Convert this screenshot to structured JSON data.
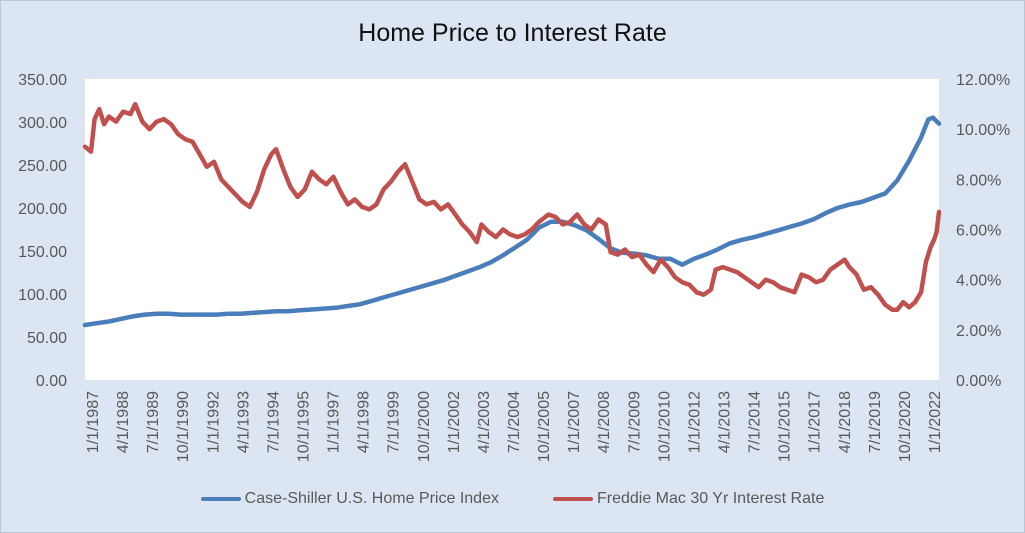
{
  "chart_data": {
    "type": "line",
    "title": "Home Price to Interest Rate",
    "xlabel": "",
    "ylabel": "",
    "grid": false,
    "legend_placement": "bottom",
    "x_tick_labels": [
      "1/1/1987",
      "4/1/1988",
      "7/1/1989",
      "10/1/1990",
      "1/1/1992",
      "4/1/1993",
      "7/1/1994",
      "10/1/1995",
      "1/1/1997",
      "4/1/1998",
      "7/1/1999",
      "10/1/2000",
      "1/1/2002",
      "4/1/2003",
      "7/1/2004",
      "10/1/2005",
      "1/1/2007",
      "4/1/2008",
      "7/1/2009",
      "10/1/2010",
      "1/1/2012",
      "4/1/2013",
      "7/1/2014",
      "10/1/2015",
      "1/1/2017",
      "4/1/2018",
      "7/1/2019",
      "10/1/2020",
      "1/1/2022"
    ],
    "y_left": {
      "ylim": [
        0,
        350
      ],
      "tick_labels": [
        "0.00",
        "50.00",
        "100.00",
        "150.00",
        "200.00",
        "250.00",
        "300.00",
        "350.00"
      ]
    },
    "y_right": {
      "ylim": [
        0,
        12
      ],
      "tick_labels": [
        "0.00%",
        "2.00%",
        "4.00%",
        "6.00%",
        "8.00%",
        "10.00%",
        "12.00%"
      ]
    },
    "x_range": [
      1987.0,
      2022.75
    ],
    "series": [
      {
        "name": "Case-Shiller U.S. Home Price Index",
        "axis": "left",
        "color": "#4a7ebb",
        "points": [
          [
            1987.0,
            64
          ],
          [
            1987.5,
            66
          ],
          [
            1988.0,
            68
          ],
          [
            1988.5,
            71
          ],
          [
            1989.0,
            74
          ],
          [
            1989.5,
            76
          ],
          [
            1990.0,
            77
          ],
          [
            1990.5,
            77
          ],
          [
            1991.0,
            76
          ],
          [
            1991.5,
            76
          ],
          [
            1992.0,
            76
          ],
          [
            1992.5,
            76
          ],
          [
            1993.0,
            77
          ],
          [
            1993.5,
            77
          ],
          [
            1994.0,
            78
          ],
          [
            1994.5,
            79
          ],
          [
            1995.0,
            80
          ],
          [
            1995.5,
            80
          ],
          [
            1996.0,
            81
          ],
          [
            1996.5,
            82
          ],
          [
            1997.0,
            83
          ],
          [
            1997.5,
            84
          ],
          [
            1998.0,
            86
          ],
          [
            1998.5,
            88
          ],
          [
            1999.0,
            92
          ],
          [
            1999.5,
            96
          ],
          [
            2000.0,
            100
          ],
          [
            2000.5,
            104
          ],
          [
            2001.0,
            108
          ],
          [
            2001.5,
            112
          ],
          [
            2002.0,
            116
          ],
          [
            2002.5,
            121
          ],
          [
            2003.0,
            126
          ],
          [
            2003.5,
            131
          ],
          [
            2004.0,
            137
          ],
          [
            2004.5,
            145
          ],
          [
            2005.0,
            154
          ],
          [
            2005.5,
            163
          ],
          [
            2006.0,
            177
          ],
          [
            2006.5,
            184
          ],
          [
            2007.0,
            184
          ],
          [
            2007.5,
            180
          ],
          [
            2008.0,
            174
          ],
          [
            2008.5,
            164
          ],
          [
            2009.0,
            153
          ],
          [
            2009.5,
            148
          ],
          [
            2010.0,
            147
          ],
          [
            2010.5,
            145
          ],
          [
            2011.0,
            141
          ],
          [
            2011.5,
            141
          ],
          [
            2012.0,
            134
          ],
          [
            2012.5,
            141
          ],
          [
            2013.0,
            146
          ],
          [
            2013.5,
            152
          ],
          [
            2014.0,
            159
          ],
          [
            2014.5,
            163
          ],
          [
            2015.0,
            166
          ],
          [
            2015.5,
            170
          ],
          [
            2016.0,
            174
          ],
          [
            2016.5,
            178
          ],
          [
            2017.0,
            182
          ],
          [
            2017.5,
            187
          ],
          [
            2018.0,
            194
          ],
          [
            2018.5,
            200
          ],
          [
            2019.0,
            204
          ],
          [
            2019.5,
            207
          ],
          [
            2020.0,
            212
          ],
          [
            2020.5,
            217
          ],
          [
            2021.0,
            232
          ],
          [
            2021.5,
            255
          ],
          [
            2022.0,
            282
          ],
          [
            2022.3,
            303
          ],
          [
            2022.5,
            305
          ],
          [
            2022.75,
            298
          ]
        ]
      },
      {
        "name": "Freddie Mac 30 Yr Interest Rate",
        "axis": "right",
        "color": "#c0504d",
        "points": [
          [
            1987.0,
            9.3
          ],
          [
            1987.25,
            9.1
          ],
          [
            1987.4,
            10.4
          ],
          [
            1987.6,
            10.8
          ],
          [
            1987.8,
            10.2
          ],
          [
            1988.0,
            10.5
          ],
          [
            1988.3,
            10.3
          ],
          [
            1988.6,
            10.7
          ],
          [
            1988.9,
            10.6
          ],
          [
            1989.1,
            11.0
          ],
          [
            1989.4,
            10.3
          ],
          [
            1989.7,
            10.0
          ],
          [
            1990.0,
            10.3
          ],
          [
            1990.3,
            10.4
          ],
          [
            1990.6,
            10.2
          ],
          [
            1990.9,
            9.8
          ],
          [
            1991.2,
            9.6
          ],
          [
            1991.5,
            9.5
          ],
          [
            1991.8,
            9.0
          ],
          [
            1992.1,
            8.5
          ],
          [
            1992.4,
            8.7
          ],
          [
            1992.7,
            8.0
          ],
          [
            1993.0,
            7.7
          ],
          [
            1993.3,
            7.4
          ],
          [
            1993.6,
            7.1
          ],
          [
            1993.9,
            6.9
          ],
          [
            1994.2,
            7.5
          ],
          [
            1994.5,
            8.4
          ],
          [
            1994.8,
            9.0
          ],
          [
            1995.0,
            9.2
          ],
          [
            1995.3,
            8.4
          ],
          [
            1995.6,
            7.7
          ],
          [
            1995.9,
            7.3
          ],
          [
            1996.2,
            7.6
          ],
          [
            1996.5,
            8.3
          ],
          [
            1996.8,
            8.0
          ],
          [
            1997.1,
            7.8
          ],
          [
            1997.4,
            8.1
          ],
          [
            1997.7,
            7.5
          ],
          [
            1998.0,
            7.0
          ],
          [
            1998.3,
            7.2
          ],
          [
            1998.6,
            6.9
          ],
          [
            1998.9,
            6.8
          ],
          [
            1999.2,
            7.0
          ],
          [
            1999.5,
            7.6
          ],
          [
            1999.8,
            7.9
          ],
          [
            2000.1,
            8.3
          ],
          [
            2000.4,
            8.6
          ],
          [
            2000.7,
            7.9
          ],
          [
            2001.0,
            7.2
          ],
          [
            2001.3,
            7.0
          ],
          [
            2001.6,
            7.1
          ],
          [
            2001.9,
            6.8
          ],
          [
            2002.2,
            7.0
          ],
          [
            2002.5,
            6.6
          ],
          [
            2002.8,
            6.2
          ],
          [
            2003.1,
            5.9
          ],
          [
            2003.4,
            5.5
          ],
          [
            2003.6,
            6.2
          ],
          [
            2003.9,
            5.9
          ],
          [
            2004.2,
            5.7
          ],
          [
            2004.5,
            6.0
          ],
          [
            2004.8,
            5.8
          ],
          [
            2005.1,
            5.7
          ],
          [
            2005.4,
            5.8
          ],
          [
            2005.7,
            6.0
          ],
          [
            2006.0,
            6.3
          ],
          [
            2006.4,
            6.6
          ],
          [
            2006.7,
            6.5
          ],
          [
            2007.0,
            6.2
          ],
          [
            2007.3,
            6.3
          ],
          [
            2007.6,
            6.6
          ],
          [
            2007.9,
            6.2
          ],
          [
            2008.2,
            6.0
          ],
          [
            2008.5,
            6.4
          ],
          [
            2008.8,
            6.2
          ],
          [
            2009.0,
            5.1
          ],
          [
            2009.3,
            5.0
          ],
          [
            2009.6,
            5.2
          ],
          [
            2009.9,
            4.9
          ],
          [
            2010.2,
            5.0
          ],
          [
            2010.5,
            4.6
          ],
          [
            2010.8,
            4.3
          ],
          [
            2011.1,
            4.8
          ],
          [
            2011.4,
            4.5
          ],
          [
            2011.7,
            4.1
          ],
          [
            2012.0,
            3.9
          ],
          [
            2012.3,
            3.8
          ],
          [
            2012.6,
            3.5
          ],
          [
            2012.9,
            3.4
          ],
          [
            2013.2,
            3.6
          ],
          [
            2013.4,
            4.4
          ],
          [
            2013.7,
            4.5
          ],
          [
            2014.0,
            4.4
          ],
          [
            2014.3,
            4.3
          ],
          [
            2014.6,
            4.1
          ],
          [
            2014.9,
            3.9
          ],
          [
            2015.2,
            3.7
          ],
          [
            2015.5,
            4.0
          ],
          [
            2015.8,
            3.9
          ],
          [
            2016.1,
            3.7
          ],
          [
            2016.4,
            3.6
          ],
          [
            2016.7,
            3.5
          ],
          [
            2017.0,
            4.2
          ],
          [
            2017.3,
            4.1
          ],
          [
            2017.6,
            3.9
          ],
          [
            2017.9,
            4.0
          ],
          [
            2018.2,
            4.4
          ],
          [
            2018.5,
            4.6
          ],
          [
            2018.8,
            4.8
          ],
          [
            2019.0,
            4.5
          ],
          [
            2019.3,
            4.2
          ],
          [
            2019.6,
            3.6
          ],
          [
            2019.9,
            3.7
          ],
          [
            2020.2,
            3.4
          ],
          [
            2020.5,
            3.0
          ],
          [
            2020.8,
            2.8
          ],
          [
            2021.0,
            2.8
          ],
          [
            2021.25,
            3.1
          ],
          [
            2021.5,
            2.9
          ],
          [
            2021.75,
            3.1
          ],
          [
            2022.0,
            3.5
          ],
          [
            2022.2,
            4.7
          ],
          [
            2022.4,
            5.3
          ],
          [
            2022.55,
            5.6
          ],
          [
            2022.65,
            5.9
          ],
          [
            2022.75,
            6.7
          ]
        ]
      }
    ]
  }
}
